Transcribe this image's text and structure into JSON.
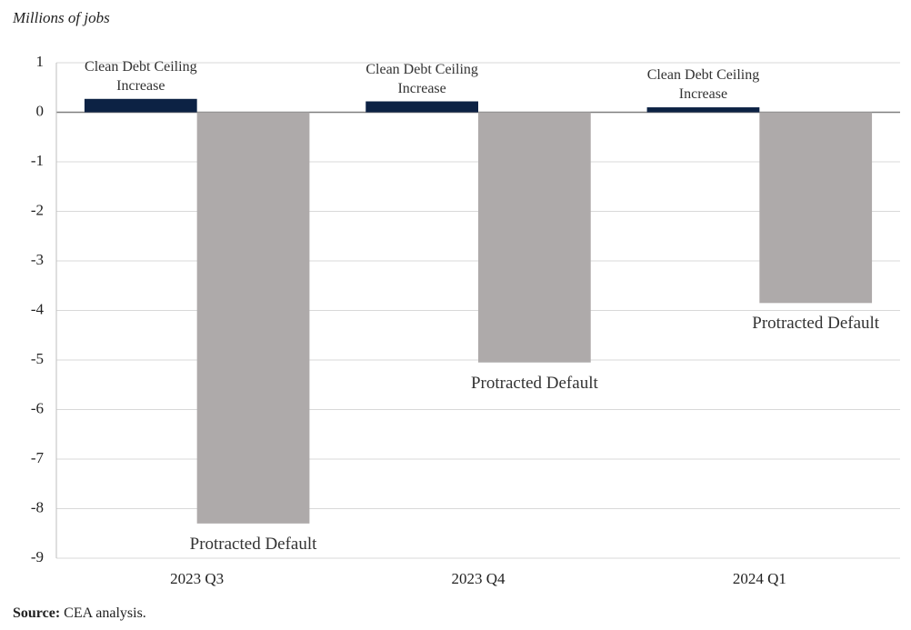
{
  "chart_data": {
    "type": "bar",
    "y_axis_title": "Millions of jobs",
    "categories": [
      "2023 Q3",
      "2023 Q4",
      "2024 Q1"
    ],
    "series": [
      {
        "name": "Clean Debt Ceiling Increase",
        "color": "#0c2244",
        "values": [
          0.27,
          0.22,
          0.1
        ]
      },
      {
        "name": "Protracted Default",
        "color": "#aeaaaa",
        "values": [
          -8.3,
          -5.05,
          -3.85
        ]
      }
    ],
    "ylim": [
      -9,
      1
    ],
    "yticks": [
      1,
      0,
      -1,
      -2,
      -3,
      -4,
      -5,
      -6,
      -7,
      -8,
      -9
    ],
    "grid": true,
    "source_label": "Source:",
    "source": "CEA analysis."
  }
}
